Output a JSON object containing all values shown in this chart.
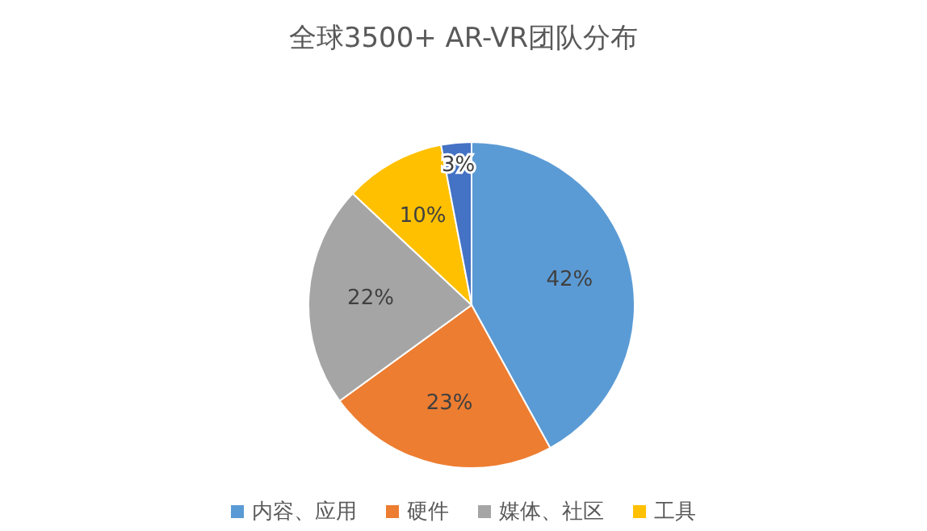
{
  "chart_data": {
    "type": "pie",
    "title": "全球3500+ AR-VR团队分布",
    "categories": [
      "内容、应用",
      "硬件",
      "媒体、社区",
      "工具",
      null
    ],
    "values": [
      42,
      23,
      22,
      10,
      3
    ],
    "colors": [
      "#5b9bd5",
      "#ed7d31",
      "#a5a5a5",
      "#ffc000",
      "#4472c4"
    ],
    "value_labels": [
      "42%",
      "23%",
      "22%",
      "10%",
      "3%"
    ],
    "legend": "bottom"
  }
}
